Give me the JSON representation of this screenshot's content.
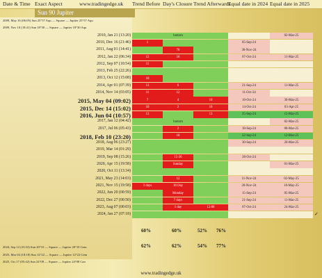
{
  "header": {
    "date_time": "Date & Time",
    "exact_aspect": "Exact Aspect",
    "site": "www.tradingedge.uk",
    "trend_before": "Trend Before",
    "days_closure": "Day's Closure",
    "trend_afterwards": "Trend Afterwards",
    "equal_2024": "Equal date in 2024",
    "equal_2025": "Equal date in 2025"
  },
  "section_title": "Sun 90 Jupiter",
  "rows": [
    {
      "label": "2009, May 16 (06:05)  Sun 25°57  Aqu — Square — Jupiter 25°57 Aqu",
      "long": true
    },
    {
      "label": "2009, Nov 10 (18:41)  Sun 18°30 — Square — Jupiter 18°30 Aqu",
      "long": true
    },
    {
      "label": "2010, Jan 21 (13:20)",
      "tb": "",
      "dc": "bottom",
      "ta": "",
      "d24": "",
      "d25": "02-Mar-25"
    },
    {
      "label": "2010, Dec 16 (21:46)",
      "tb": "1",
      "dc": "",
      "ta": "",
      "d24": "05-Sep-24",
      "d25": ""
    },
    {
      "label": "2011, Aug 01 (14:41)",
      "tb": "",
      "dc": "76",
      "ta": "",
      "d24": "30-Nov-24",
      "d25": ""
    },
    {
      "label": "2012, Jan 22 (06:34)",
      "tb": "12",
      "dc": "16",
      "ta": "",
      "d24": "07-Oct-24",
      "d25": "11-Mar-25"
    },
    {
      "label": "2012, Sep 07 (10:54)",
      "tb": "11",
      "dc": "",
      "ta": "",
      "d24": "",
      "d25": ""
    },
    {
      "label": "2013, Feb 25 (22:26)",
      "tb": "",
      "dc": "",
      "ta": "",
      "d24": "",
      "d25": ""
    },
    {
      "label": "2013, Oct 12 (15:08)",
      "tb": "10",
      "dc": "",
      "ta": "",
      "d24": "",
      "d25": ""
    },
    {
      "label": "2014, Apr 01 (07:39)",
      "tb": "13",
      "dc": "6",
      "ta": "",
      "d24": "21-Sep-24",
      "d25": "11-Mar-25"
    },
    {
      "label": "2014, Nov 14 (03:05)",
      "tb": "11",
      "dc": "12",
      "ta": "",
      "d24": "11-Oct-24",
      "d25": ""
    },
    {
      "label": "2015, May 04 (09:02)",
      "big": true,
      "tb": "7",
      "dc": "4",
      "ta": "10",
      "d24": "10-Oct-24",
      "d25": "30-Mar-25"
    },
    {
      "label": "2015, Dec 14 (15:02)",
      "big": true,
      "tb": "10",
      "dc": "2",
      "ta": "10",
      "d24": "14-Oct-24",
      "d25": "03-Apr-25"
    },
    {
      "label": "2016, Jun 04 (10:57)",
      "big": true,
      "tb": "13",
      "dc": "",
      "ta": "13",
      "d24": "25-Sep-24",
      "d25": "15-Mar-25"
    },
    {
      "label": "2017, Jan 12 (04:42)",
      "tb": "",
      "dc": "bottom",
      "ta": "",
      "d24": "",
      "d25": "02-Mar-25"
    },
    {
      "label": "2017, Jul 06 (05:43)",
      "tb": "",
      "dc": "2",
      "ta": "",
      "d24": "18-Sep-24",
      "d25": "08-Mar-25"
    },
    {
      "label": "2018, Feb 10 (23:20)",
      "big": true,
      "tb": "",
      "dc": "10",
      "ta": "",
      "d24": "22-Sep-24",
      "d25": "12-Mar-25"
    },
    {
      "label": "2018, Aug 06 (23:27)",
      "tb": "",
      "dc": "",
      "ta": "",
      "d24": "30-Sep-24",
      "d25": "20-Mar-25"
    },
    {
      "label": "2019, Mar 14 (01:29)",
      "tb": "",
      "dc": "",
      "ta": "",
      "d24": "",
      "d25": ""
    },
    {
      "label": "2019, Sep 08 (15:26)",
      "tb": "",
      "dc": "15-26",
      "ta": "",
      "d24": "28-Oct-24",
      "d25": ""
    },
    {
      "label": "2020, Apr 15 (19:58)",
      "tb": "",
      "dc": "Sunday",
      "ta": "",
      "d24": "",
      "d25": "01-Mar-25"
    },
    {
      "label": "2020, Oct 11 (13:34)",
      "tb": "",
      "dc": "",
      "ta": "",
      "d24": "",
      "d25": ""
    },
    {
      "label": "2021, May 23 (14:03)",
      "tb": "",
      "dc": "12",
      "ta": "",
      "d24": "11-Nov-24",
      "d25": "02-May-25"
    },
    {
      "label": "2021, Nov 15 (19:58)",
      "tb": "3 days",
      "dc": "18 Day",
      "ta": "",
      "d24": "20-Nov-24",
      "d25": "10-May-25"
    },
    {
      "label": "2022, Jun 20 (00:59)",
      "tb": "",
      "dc": "Monday",
      "ta": "",
      "d24": "15-Sep-24",
      "d25": "05-Mar-25"
    },
    {
      "label": "2022, Dec 27 (00:50)",
      "tb": "",
      "dc": "7 days",
      "ta": "",
      "d24": "21-Sep-24",
      "d25": "11-Mar-25"
    },
    {
      "label": "2023, Aug 07 (00:03)",
      "tb": "",
      "dc": "1 day",
      "ta": "12:00",
      "d24": "07-Oct-24",
      "d25": "24-Mar-25"
    },
    {
      "label": "2024, Jan 27 (07:18)",
      "tb": "",
      "dc": "",
      "ta": "",
      "d24": "",
      "d25": ""
    },
    {
      "label": "2024, Sep 12 (23:52)  Sun 20°10 — Square — Jupiter 20°10 Gem",
      "long": true
    },
    {
      "label": "2025, Mar 02 (18:18)  Sun 12°22 — Square — Jupiter 12°22 Gem",
      "long": true
    },
    {
      "label": "2025, Oct 17 (05:42)  Sun 24°08 — Square — Jupiter 24°08 Can",
      "long": true
    }
  ],
  "stats": {
    "row1": [
      "60%",
      "60%",
      "52%",
      "76%"
    ],
    "row2": [
      "62%",
      "62%",
      "54%",
      "77%"
    ]
  },
  "check_mark": "✓",
  "footer": "www.tradingedge.uk"
}
